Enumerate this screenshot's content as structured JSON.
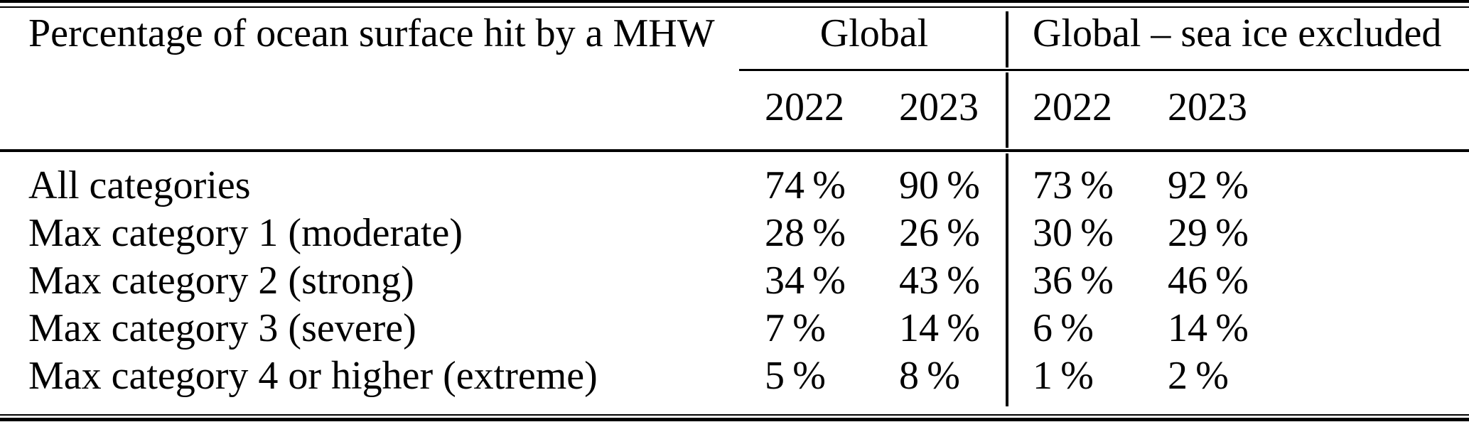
{
  "colors": {
    "background": "#ffffff",
    "text": "#000000",
    "rules": "#000000"
  },
  "table": {
    "title": "Percentage of ocean surface hit by a MHW",
    "column_groups": [
      {
        "label": "Global",
        "years": [
          "2022",
          "2023"
        ]
      },
      {
        "label": "Global – sea ice excluded",
        "years": [
          "2022",
          "2023"
        ]
      }
    ],
    "rows": [
      {
        "label": "All categories",
        "values": [
          "74 %",
          "90 %",
          "73 %",
          "92 %"
        ]
      },
      {
        "label": "Max category 1 (moderate)",
        "values": [
          "28 %",
          "26 %",
          "30 %",
          "29 %"
        ]
      },
      {
        "label": "Max category 2 (strong)",
        "values": [
          "34 %",
          "43 %",
          "36 %",
          "46 %"
        ]
      },
      {
        "label": "Max category 3 (severe)",
        "values": [
          "7 %",
          "14 %",
          "6 %",
          "14 %"
        ]
      },
      {
        "label": "Max category 4 or higher (extreme)",
        "values": [
          "5 %",
          "8 %",
          "1 %",
          "2 %"
        ]
      }
    ]
  }
}
